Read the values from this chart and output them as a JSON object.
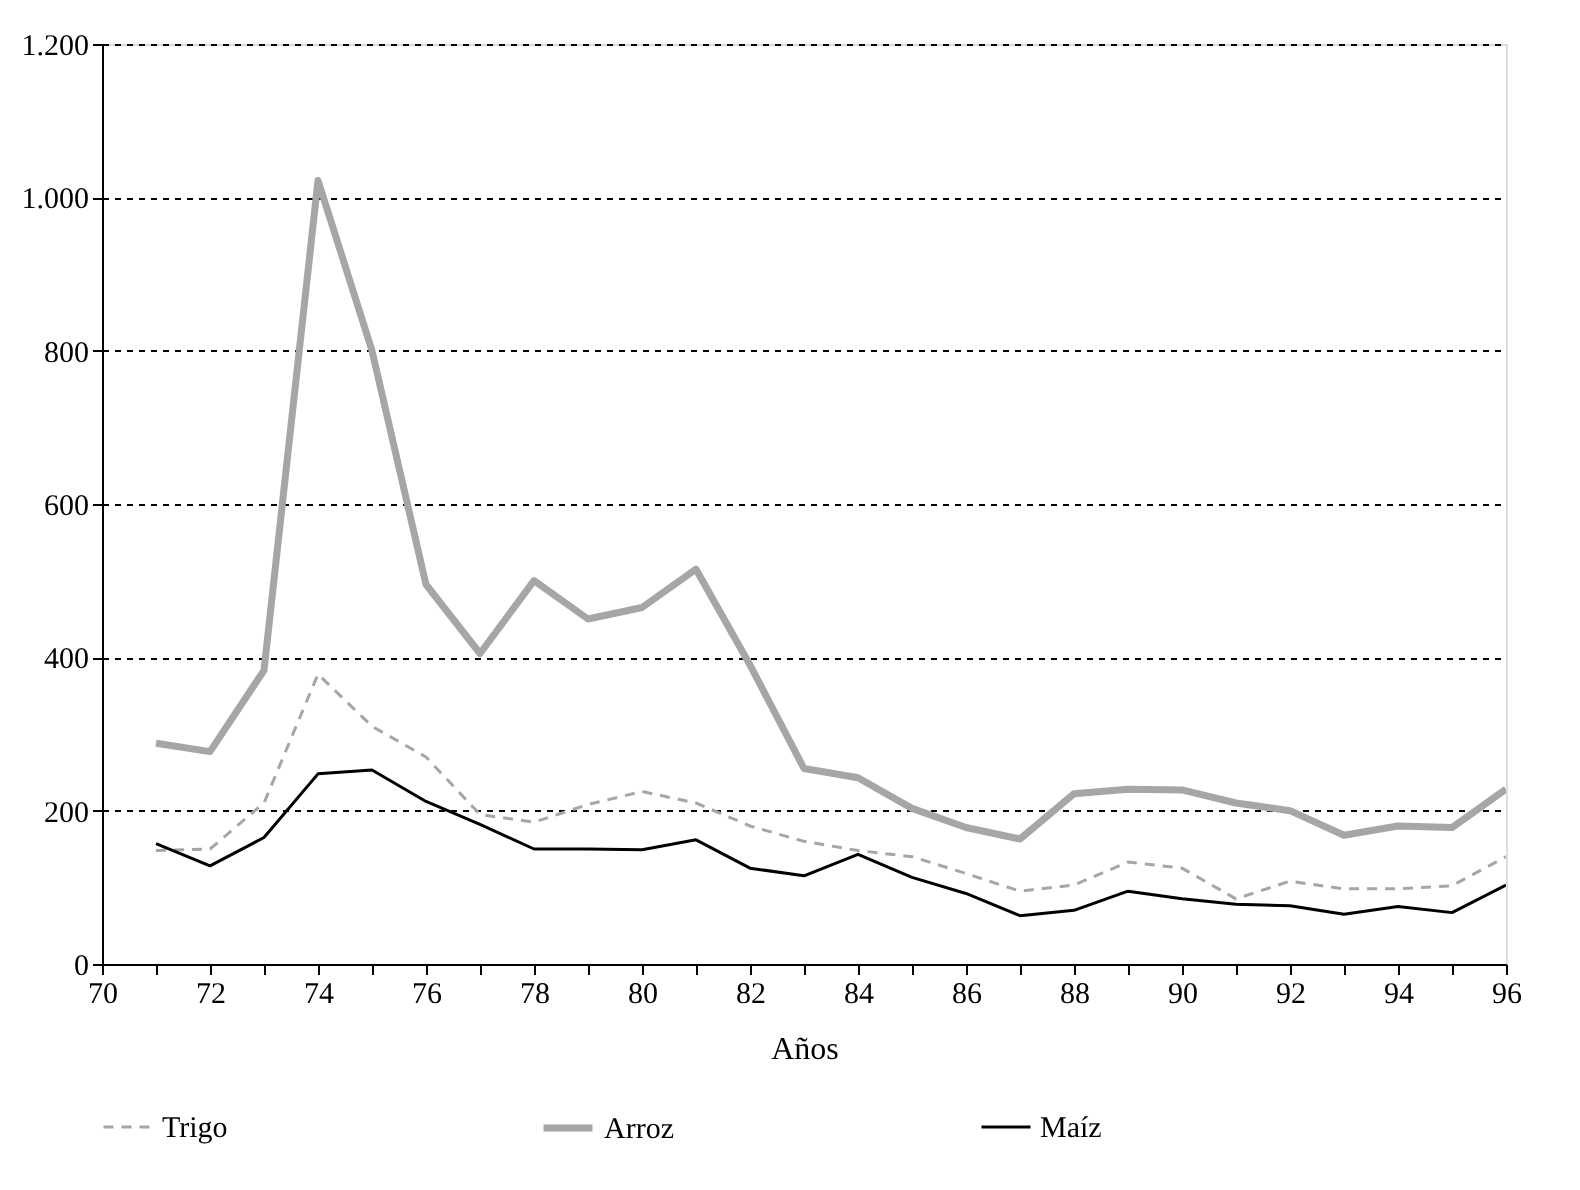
{
  "chart_data": {
    "type": "line",
    "xlabel": "Años",
    "x": [
      71,
      72,
      73,
      74,
      75,
      76,
      77,
      78,
      79,
      80,
      81,
      82,
      83,
      84,
      85,
      86,
      87,
      88,
      89,
      90,
      91,
      92,
      93,
      94,
      95,
      96
    ],
    "series": [
      {
        "name": "Trigo",
        "color": "#a6a6a6",
        "line_style": "dashed",
        "values": [
          148,
          150,
          210,
          378,
          310,
          270,
          195,
          185,
          208,
          225,
          210,
          180,
          160,
          148,
          140,
          118,
          95,
          103,
          133,
          125,
          85,
          108,
          98,
          98,
          102,
          140
        ]
      },
      {
        "name": "Arroz",
        "color": "#a6a6a6",
        "line_style": "solid",
        "values": [
          288,
          277,
          383,
          1022,
          800,
          495,
          405,
          500,
          450,
          465,
          515,
          390,
          255,
          243,
          203,
          178,
          163,
          222,
          228,
          227,
          210,
          200,
          168,
          180,
          178,
          228
        ]
      },
      {
        "name": "Maíz",
        "color": "#000000",
        "line_style": "solid",
        "values": [
          157,
          128,
          165,
          248,
          253,
          212,
          182,
          150,
          150,
          149,
          162,
          125,
          115,
          143,
          113,
          92,
          63,
          70,
          95,
          85,
          78,
          76,
          65,
          75,
          67,
          103
        ]
      }
    ],
    "xlim": [
      70,
      96
    ],
    "xticks": [
      70,
      {
        "value": 71,
        "label": null
      },
      72,
      {
        "value": 73,
        "label": null
      },
      74,
      {
        "value": 75,
        "label": null
      },
      76,
      {
        "value": 77,
        "label": null
      },
      78,
      {
        "value": 79,
        "label": null
      },
      80,
      {
        "value": 81,
        "label": null
      },
      82,
      {
        "value": 83,
        "label": null
      },
      84,
      {
        "value": 85,
        "label": null
      },
      86,
      {
        "value": 87,
        "label": null
      },
      88,
      {
        "value": 89,
        "label": null
      },
      90,
      {
        "value": 91,
        "label": null
      },
      92,
      {
        "value": 93,
        "label": null
      },
      94,
      {
        "value": 95,
        "label": null
      },
      96
    ],
    "ylim": [
      0,
      1200
    ],
    "yticks": [
      0,
      200,
      400,
      600,
      800,
      {
        "value": 1000,
        "label": "1.000"
      },
      {
        "value": 1200,
        "label": "1.200"
      }
    ],
    "grid": "y",
    "legend": "bottom",
    "marker": "none"
  }
}
